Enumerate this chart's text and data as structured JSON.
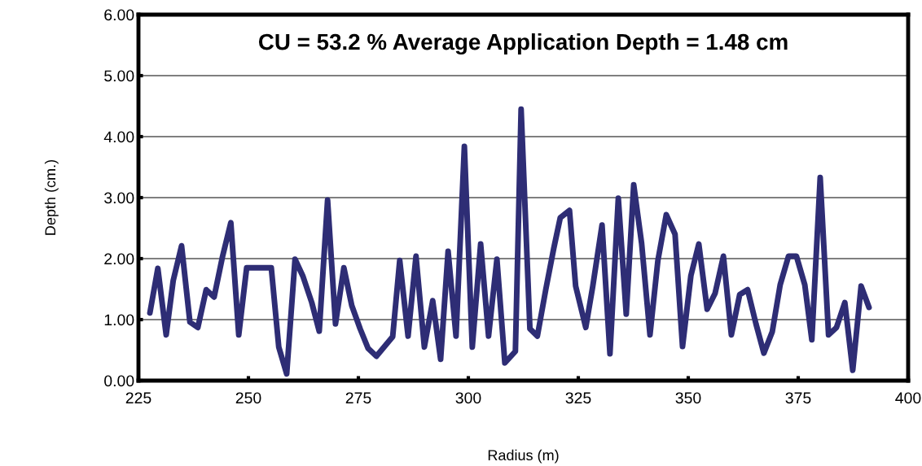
{
  "chart_data": {
    "type": "line",
    "title": "CU = 53.2 % Average Application Depth = 1.48 cm",
    "xlabel": "Radius (m)",
    "ylabel": "Depth (cm.)",
    "x": [
      227.6,
      229.4,
      231.3,
      232.9,
      234.8,
      236.7,
      238.5,
      240.4,
      242.2,
      244.1,
      246,
      247.8,
      249.6,
      255.2,
      256.9,
      258.7,
      260.6,
      262.4,
      264.4,
      266.1,
      268,
      269.8,
      271.7,
      273.5,
      275.4,
      277.2,
      279.1,
      282.8,
      284.4,
      286.3,
      288.1,
      290,
      291.9,
      293.7,
      295.4,
      297.2,
      299.1,
      300.9,
      302.8,
      304.6,
      306.5,
      308.3,
      310.7,
      312,
      314,
      315.7,
      317.6,
      319.4,
      320.9,
      323,
      324.4,
      326.7,
      328.3,
      330.4,
      332.2,
      334.1,
      335.9,
      337.6,
      339.4,
      341.3,
      343.1,
      345,
      347,
      348.7,
      350.6,
      352.4,
      354.3,
      356.1,
      358,
      359.8,
      361.7,
      363.5,
      365.4,
      367.2,
      369.1,
      370.9,
      372.8,
      374.6,
      376.5,
      378.1,
      380,
      381.9,
      383.7,
      385.6,
      387.4,
      389.3,
      391.1
    ],
    "series": [
      {
        "color": "#2e2d75",
        "values": [
          1.11,
          1.84,
          0.75,
          1.64,
          2.21,
          0.96,
          0.87,
          1.49,
          1.37,
          2.03,
          2.59,
          0.75,
          1.85,
          1.85,
          0.55,
          0.11,
          1.99,
          1.71,
          1.28,
          0.81,
          2.96,
          0.93,
          1.85,
          1.23,
          0.85,
          0.53,
          0.4,
          0.72,
          1.97,
          0.73,
          2.04,
          0.55,
          1.31,
          0.35,
          2.12,
          0.73,
          3.84,
          0.55,
          2.24,
          0.73,
          1.99,
          0.29,
          0.48,
          4.45,
          0.85,
          0.73,
          1.49,
          2.16,
          2.67,
          2.79,
          1.55,
          0.87,
          1.55,
          2.55,
          0.44,
          2.99,
          1.09,
          3.21,
          2.25,
          0.75,
          1.97,
          2.72,
          2.4,
          0.56,
          1.72,
          2.24,
          1.17,
          1.43,
          2.04,
          0.75,
          1.41,
          1.49,
          0.93,
          0.45,
          0.8,
          1.57,
          2.04,
          2.04,
          1.57,
          0.67,
          3.33,
          0.75,
          0.87,
          1.28,
          0.17,
          1.55,
          1.2
        ]
      }
    ],
    "xlim": [
      225,
      400
    ],
    "xticks": [
      225,
      250,
      275,
      300,
      325,
      350,
      375,
      400
    ],
    "ylim": [
      0,
      6
    ],
    "yticks": [
      {
        "value": 0,
        "label": "0.00"
      },
      {
        "value": 1,
        "label": "1.00"
      },
      {
        "value": 2,
        "label": "2.00"
      },
      {
        "value": 3,
        "label": "3.00"
      },
      {
        "value": 4,
        "label": "4.00"
      },
      {
        "value": 5,
        "label": "5.00"
      },
      {
        "value": 6,
        "label": "6.00"
      }
    ],
    "grid": "y",
    "marker": "none",
    "line_style": "solid"
  }
}
